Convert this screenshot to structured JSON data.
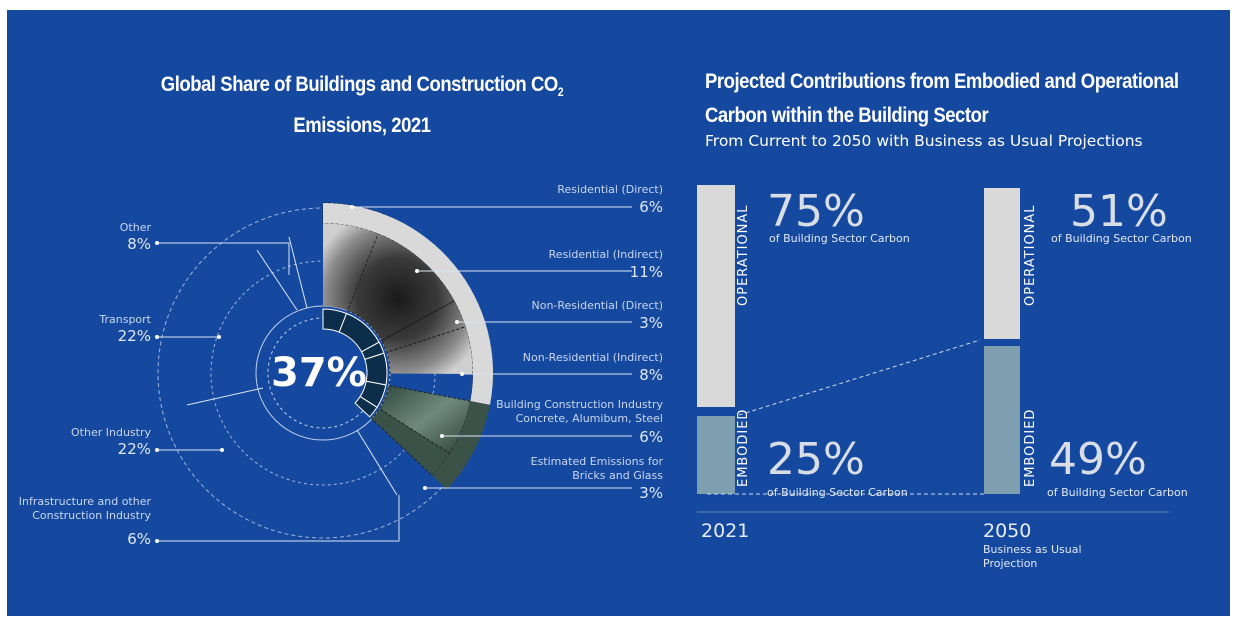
{
  "left_chart": {
    "title_line1": "Global Share of Buildings and Construction CO",
    "title_sub": "2",
    "title_line2": "Emissions, 2021",
    "center_value": "37%",
    "outer_labels": [
      {
        "label": "Other",
        "value": "8%"
      },
      {
        "label": "Transport",
        "value": "22%"
      },
      {
        "label": "Other Industry",
        "value": "22%"
      },
      {
        "label_line1": "Infrastructure and other",
        "label_line2": "Construction Industry",
        "value": "6%"
      }
    ],
    "building_labels": [
      {
        "label": "Residential (Direct)",
        "value": "6%"
      },
      {
        "label": "Residential (Indirect)",
        "value": "11%"
      },
      {
        "label": "Non-Residential (Direct)",
        "value": "3%"
      },
      {
        "label": "Non-Residential (Indirect)",
        "value": "8%"
      },
      {
        "label_line1": "Building Construction Industry",
        "label_line2": "Concrete, Alumibum, Steel",
        "value": "6%"
      },
      {
        "label_line1": "Estimated Emissions for",
        "label_line2": "Bricks and Glass",
        "value": "3%"
      }
    ]
  },
  "right_chart": {
    "title_line1": "Projected Contributions from Embodied and Operational",
    "title_line2": "Carbon within the Building Sector",
    "subtitle": "From Current to 2050 with Business as Usual Projections",
    "operational_label": "OPERATIONAL",
    "embodied_label": "EMBODIED",
    "caption": "of Building Sector Carbon",
    "bars": [
      {
        "year": "2021",
        "note_line1": "",
        "note_line2": "",
        "operational": "75%",
        "embodied": "25%"
      },
      {
        "year": "2050",
        "note_line1": "Business as Usual",
        "note_line2": "Projection",
        "operational": "51%",
        "embodied": "49%"
      }
    ]
  },
  "colors": {
    "background": "#1549a0",
    "operational": "#d9d9d9",
    "embodied": "#7e9fb0",
    "core_ring": "#0c2e4a",
    "residential": "#d9d9d9",
    "construction": "#3b5248"
  },
  "chart_data": [
    {
      "type": "pie",
      "title": "Global Share of Buildings and Construction CO2 Emissions, 2021",
      "categories": [
        "Residential (Direct)",
        "Residential (Indirect)",
        "Non-Residential (Direct)",
        "Non-Residential (Indirect)",
        "Building Construction Industry Concrete, Alumibum, Steel",
        "Estimated Emissions for Bricks and Glass",
        "Other",
        "Transport",
        "Other Industry",
        "Infrastructure and other Construction Industry"
      ],
      "values": [
        6,
        11,
        3,
        8,
        6,
        3,
        8,
        22,
        22,
        6
      ],
      "annotations": [
        "37%"
      ]
    },
    {
      "type": "bar",
      "title": "Projected Contributions from Embodied and Operational Carbon within the Building Sector",
      "subtitle": "From Current to 2050 with Business as Usual Projections",
      "categories": [
        "2021",
        "2050"
      ],
      "series": [
        {
          "name": "OPERATIONAL",
          "values": [
            75,
            51
          ]
        },
        {
          "name": "EMBODIED",
          "values": [
            25,
            49
          ]
        }
      ],
      "ylim": [
        0,
        100
      ],
      "stacked": true
    }
  ]
}
